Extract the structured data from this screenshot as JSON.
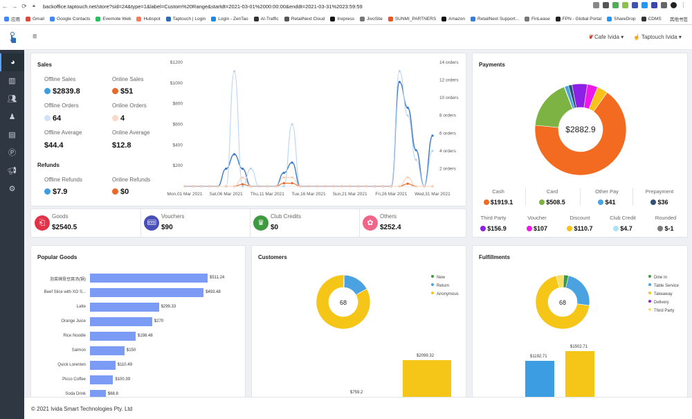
{
  "browser": {
    "url": "backoffice.taptouch.net/store?sid=24&type=1&label=Custom%20Range&startdt=2021-03-01%2000:00:00&enddt=2021-03-31%2023:59:59",
    "bookmarks": [
      "应用",
      "Gmail",
      "Google Contacts",
      "Evernote Web",
      "Hubspot",
      "Taptouch | Login",
      "Login - ZenTao",
      "AI-Traffic",
      "RetailNext Cloud",
      "Inxpress",
      "JivoSite",
      "SUNMI_PARTNERS",
      "Amazon",
      "RetailNext Support...",
      "FinLease",
      "FPN - Global Portal",
      "ShareDrop",
      "CDMS"
    ],
    "reading_list": "其他书签"
  },
  "topbar": {
    "store": "Cafe Ivida",
    "user": "Taptouch Ivida"
  },
  "sales": {
    "title": "Sales",
    "offline_sales_label": "Offline Sales",
    "offline_sales": "$2839.8",
    "online_sales_label": "Online Sales",
    "online_sales": "$51",
    "offline_orders_label": "Offline Orders",
    "offline_orders": "64",
    "online_orders_label": "Online Orders",
    "online_orders": "4",
    "offline_avg_label": "Offline Average",
    "offline_avg": "$44.4",
    "online_avg_label": "Online Average",
    "online_avg": "$12.8",
    "refunds_title": "Refunds",
    "offline_refunds_label": "Offline Refunds",
    "offline_refunds": "$7.9",
    "online_refunds_label": "Online Refunds",
    "online_refunds": "$0"
  },
  "stats": [
    {
      "label": "Goods",
      "value": "$2540.5",
      "color": "#e0334a"
    },
    {
      "label": "Vouchers",
      "value": "$90",
      "color": "#4a4fb8"
    },
    {
      "label": "Club Credits",
      "value": "$0",
      "color": "#3e9a3e"
    },
    {
      "label": "Others",
      "value": "$252.4",
      "color": "#f0668a"
    }
  ],
  "chart_data": [
    {
      "type": "line",
      "title": "Sales",
      "x_tick_labels": [
        "Mon,01 Mar 2021",
        "Sat,06 Mar 2021",
        "Thu,11 Mar 2021",
        "Tue,16 Mar 2021",
        "Sun,21 Mar 2021",
        "Fri,26 Mar 2021",
        "Wed,31 Mar 2021"
      ],
      "y_left_ticks": [
        "$200",
        "$400",
        "$600",
        "$800",
        "$1000",
        "$1200"
      ],
      "y_left_lim": [
        0,
        1200
      ],
      "y_right_ticks": [
        "2 orders",
        "4 orders",
        "6 orders",
        "8 orders",
        "10 orders",
        "12 orders",
        "14 orders"
      ],
      "y_right_lim": [
        0,
        14
      ],
      "days": [
        1,
        2,
        3,
        4,
        5,
        6,
        7,
        8,
        9,
        10,
        11,
        12,
        13,
        14,
        15,
        16,
        17,
        18,
        19,
        20,
        21,
        22,
        23,
        24,
        25,
        26,
        27,
        28,
        29,
        30,
        31
      ],
      "series": [
        {
          "color": "#3a78c9",
          "axis": "left",
          "values": [
            0,
            0,
            0,
            0,
            0,
            170,
            310,
            170,
            0,
            0,
            0,
            0,
            130,
            230,
            0,
            0,
            0,
            0,
            0,
            0,
            0,
            0,
            0,
            0,
            0,
            0,
            1010,
            760,
            350,
            0,
            490
          ]
        },
        {
          "color": "#b8d4f5",
          "axis": "right",
          "values": [
            0,
            0,
            0,
            0,
            0,
            0,
            13,
            0,
            2,
            0,
            0,
            0,
            0,
            7,
            0,
            0,
            0,
            0,
            0,
            0,
            0,
            0,
            0,
            0,
            0,
            0,
            13,
            8,
            3,
            0,
            4
          ]
        },
        {
          "color": "#e8682a",
          "axis": "left",
          "values": [
            0,
            0,
            0,
            0,
            0,
            0,
            0,
            20,
            0,
            0,
            0,
            0,
            30,
            30,
            0,
            0,
            0,
            0,
            0,
            0,
            0,
            0,
            0,
            0,
            0,
            0,
            0,
            25,
            0,
            0,
            0
          ]
        },
        {
          "color": "#f6cdb6",
          "axis": "right",
          "values": [
            0,
            0,
            0,
            0,
            0,
            0,
            0,
            1,
            0,
            0,
            0,
            0,
            1,
            1,
            0,
            0,
            0,
            0,
            0,
            0,
            0,
            0,
            0,
            0,
            0,
            0,
            0,
            1,
            0,
            0,
            0
          ]
        }
      ]
    },
    {
      "type": "pie",
      "title": "Payments",
      "center_label": "$2882.9",
      "slices": [
        {
          "name": "Cash",
          "value": 1919.1,
          "color": "#f26b21"
        },
        {
          "name": "Card",
          "value": 508.5,
          "color": "#7cb342"
        },
        {
          "name": "Other Pay",
          "value": 41,
          "color": "#4aa3e0"
        },
        {
          "name": "Prepayment",
          "value": 36,
          "color": "#2e5177"
        },
        {
          "name": "Third Party",
          "value": 156.9,
          "color": "#8c20e6"
        },
        {
          "name": "Voucher",
          "value": 107,
          "color": "#ee19e8"
        },
        {
          "name": "Discount",
          "value": 110.7,
          "color": "#f9c21b"
        },
        {
          "name": "Club Credit",
          "value": 4.7,
          "color": "#a9e3f5"
        },
        {
          "name": "Rounded",
          "value": -1,
          "color": "#7a7a7a"
        }
      ]
    },
    {
      "type": "bar",
      "title": "Popular Goods",
      "categories": [
        "泡菜辣骨豆腐汤(锅)",
        "Beef Slice with XO S...",
        "Latte",
        "Orange Juice",
        "Rice Noodle",
        "Salmon",
        "Quick Lorenten",
        "Picco Coffee",
        "Soda Drink"
      ],
      "values": [
        511.24,
        493.48,
        299.33,
        270,
        198.48,
        150,
        110.49,
        100.39,
        68.8
      ],
      "value_labels": [
        "$511.24",
        "$493.48",
        "$299.33",
        "$270",
        "$198.48",
        "$150",
        "$110.49",
        "$100.39",
        "$68.8"
      ],
      "color": "#7b9bf5"
    },
    {
      "type": "pie",
      "title": "Customers",
      "center_label": "68",
      "legend": [
        "New",
        "Return",
        "Anonymous"
      ],
      "slices": [
        {
          "name": "New",
          "value": 0.3,
          "color": "#3e9a3e"
        },
        {
          "name": "Return",
          "value": 11,
          "color": "#4aa3e0"
        },
        {
          "name": "Anonymous",
          "value": 57,
          "color": "#f5c518"
        }
      ],
      "bars": [
        {
          "label": "$759.2",
          "value": 759.2
        },
        {
          "label": "$2099.32",
          "value": 2099.32
        }
      ]
    },
    {
      "type": "pie",
      "title": "Fulfillments",
      "center_label": "68",
      "legend": [
        "Dine In",
        "Table Service",
        "Takeaway",
        "Delivery",
        "Third Party"
      ],
      "slices": [
        {
          "name": "Dine In",
          "value": 2,
          "color": "#3e9a3e"
        },
        {
          "name": "Table Service",
          "value": 16,
          "color": "#4aa3e0"
        },
        {
          "name": "Takeaway",
          "value": 47,
          "color": "#f5c518"
        },
        {
          "name": "Delivery",
          "value": 0.3,
          "color": "#8c20e6"
        },
        {
          "name": "Third Party",
          "value": 3,
          "color": "#f9e062"
        }
      ],
      "bars": [
        {
          "label": "$1192.71",
          "value": 1192.71,
          "color": "#3d9de3"
        },
        {
          "label": "$1502.71",
          "value": 1502.71,
          "color": "#f5c518"
        }
      ]
    }
  ],
  "payments": [
    {
      "label": "Cash",
      "value": "$1919.1",
      "color": "#f26b21"
    },
    {
      "label": "Card",
      "value": "$508.5",
      "color": "#7cb342"
    },
    {
      "label": "Other Pay",
      "value": "$41",
      "color": "#4aa3e0"
    },
    {
      "label": "Prepayment",
      "value": "$36",
      "color": "#2e5177"
    },
    {
      "label": "Third Party",
      "value": "$156.9",
      "color": "#8c20e6"
    },
    {
      "label": "Voucher",
      "value": "$107",
      "color": "#ee19e8"
    },
    {
      "label": "Discount",
      "value": "$110.7",
      "color": "#f9c21b"
    },
    {
      "label": "Club Credit",
      "value": "$4.7",
      "color": "#a9e3f5"
    },
    {
      "label": "Rounded",
      "value": "$-1",
      "color": "#7a7a7a"
    }
  ],
  "footer": "© 2021 Ivida Smart Technologies Pty. Ltd"
}
